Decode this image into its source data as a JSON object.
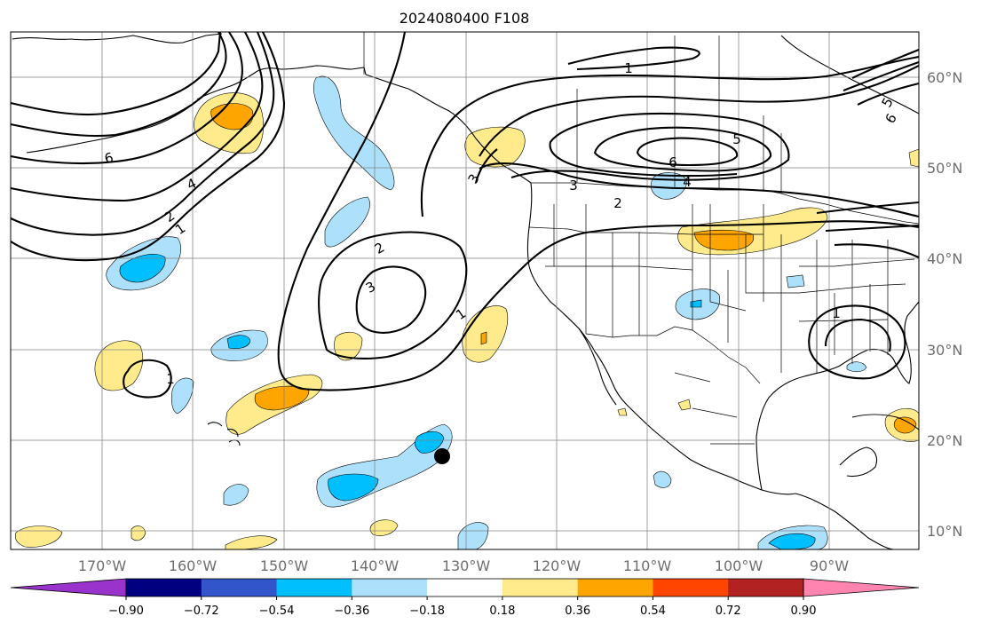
{
  "title": "2024080400 F108",
  "map": {
    "lon_labels": [
      "170°W",
      "160°W",
      "150°W",
      "140°W",
      "130°W",
      "120°W",
      "110°W",
      "100°W",
      "90°W"
    ],
    "lat_labels": [
      "60°N",
      "50°N",
      "40°N",
      "30°N",
      "20°N",
      "10°N"
    ],
    "contour_labels": [
      "1",
      "1",
      "1",
      "1",
      "1",
      "2",
      "2",
      "2",
      "3",
      "3",
      "3",
      "4",
      "4",
      "5",
      "6",
      "6",
      "5",
      "6"
    ]
  },
  "colorbar": {
    "tick_labels": [
      "−0.90",
      "−0.72",
      "−0.54",
      "−0.36",
      "−0.18",
      "0.18",
      "0.36",
      "0.54",
      "0.72",
      "0.90"
    ],
    "colors": [
      "#9933cc",
      "#000080",
      "#3355cc",
      "#00bfff",
      "#ade1fb",
      "#ffffff",
      "#ffeb8c",
      "#ffa500",
      "#ff4500",
      "#b22222",
      "#ff85b0"
    ]
  },
  "colors": {
    "pos_light": "#ffeb8c",
    "pos_mid": "#ffa500",
    "neg_light": "#ade1fb",
    "neg_mid": "#00bfff"
  }
}
